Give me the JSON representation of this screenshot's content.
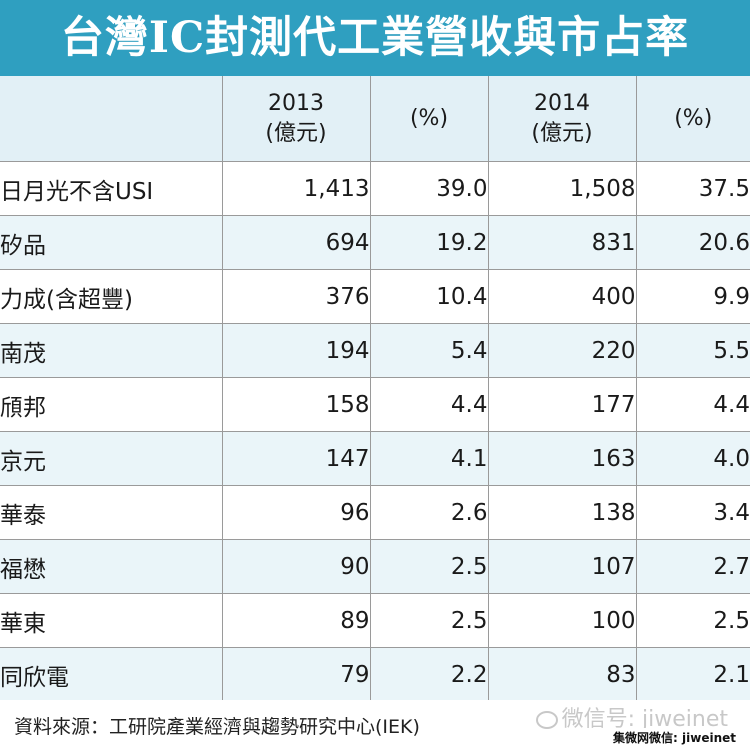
{
  "chart_data": {
    "type": "table",
    "title": "台灣IC封測代工業營收與市占率",
    "columns": [
      {
        "label": "",
        "sub": ""
      },
      {
        "label": "2013",
        "sub": "(億元)"
      },
      {
        "label": "(%)",
        "sub": ""
      },
      {
        "label": "2014",
        "sub": "(億元)"
      },
      {
        "label": "(%)",
        "sub": ""
      }
    ],
    "rows": [
      {
        "name": "日月光不含USI",
        "rev2013": "1,413",
        "pct2013": "39.0",
        "rev2014": "1,508",
        "pct2014": "37.5"
      },
      {
        "name": "矽品",
        "rev2013": "694",
        "pct2013": "19.2",
        "rev2014": "831",
        "pct2014": "20.6"
      },
      {
        "name": "力成(含超豐)",
        "rev2013": "376",
        "pct2013": "10.4",
        "rev2014": "400",
        "pct2014": "9.9"
      },
      {
        "name": "南茂",
        "rev2013": "194",
        "pct2013": "5.4",
        "rev2014": "220",
        "pct2014": "5.5"
      },
      {
        "name": "頎邦",
        "rev2013": "158",
        "pct2013": "4.4",
        "rev2014": "177",
        "pct2014": "4.4"
      },
      {
        "name": "京元",
        "rev2013": "147",
        "pct2013": "4.1",
        "rev2014": "163",
        "pct2014": "4.0"
      },
      {
        "name": "華泰",
        "rev2013": "96",
        "pct2013": "2.6",
        "rev2014": "138",
        "pct2014": "3.4"
      },
      {
        "name": "福懋",
        "rev2013": "90",
        "pct2013": "2.5",
        "rev2014": "107",
        "pct2014": "2.7"
      },
      {
        "name": "華東",
        "rev2013": "89",
        "pct2013": "2.5",
        "rev2014": "100",
        "pct2014": "2.5"
      },
      {
        "name": "同欣電",
        "rev2013": "79",
        "pct2013": "2.2",
        "rev2014": "83",
        "pct2014": "2.1"
      }
    ],
    "source": "資料來源：工研院產業經濟與趨勢研究中心(IEK)"
  },
  "watermark": {
    "main": "微信号: jiweinet",
    "sub": "集微网微信: jiweinet",
    "icon": "wechat-icon"
  },
  "colors": {
    "title_bar": "#2f9fc0",
    "header_bg": "#e2f0f6",
    "stripe_bg": "#eaf5f9"
  }
}
